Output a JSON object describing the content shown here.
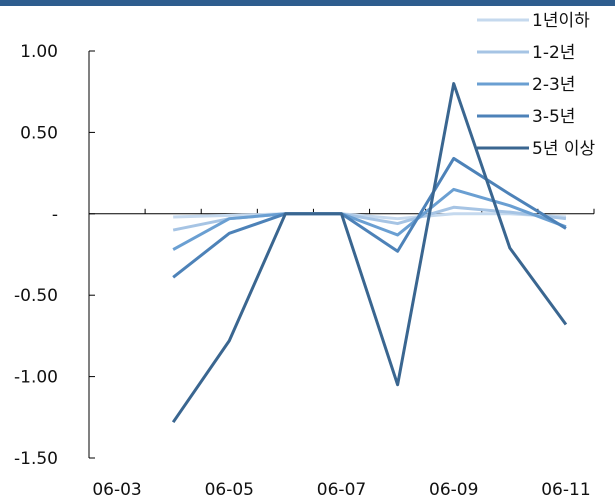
{
  "chart_data": {
    "type": "line",
    "title": "",
    "xlabel": "",
    "ylabel": "",
    "categories": [
      "06-03",
      "06-04",
      "06-05",
      "06-06",
      "06-07",
      "06-08",
      "06-09",
      "06-10",
      "06-11"
    ],
    "x_tick_labels": [
      "06-03",
      "06-05",
      "06-07",
      "06-09",
      "06-11"
    ],
    "y_tick_values": [
      1.0,
      0.5,
      0,
      -0.5,
      -1.0,
      -1.5
    ],
    "y_tick_labels": [
      "1.00",
      "0.50",
      "-",
      "-0.50",
      "-1.00",
      "-1.50"
    ],
    "ylim": [
      -1.5,
      1.0
    ],
    "grid": false,
    "legend_position": "top-right",
    "series": [
      {
        "name": "1년이하",
        "color": "#c5d9ee",
        "values": [
          null,
          -0.02,
          -0.01,
          0.0,
          0.0,
          -0.03,
          0.0,
          0.0,
          -0.02
        ]
      },
      {
        "name": "1-2년",
        "color": "#a6c4e4",
        "values": [
          null,
          -0.1,
          -0.03,
          0.0,
          0.0,
          -0.06,
          0.04,
          0.01,
          -0.03
        ]
      },
      {
        "name": "2-3년",
        "color": "#6a9fd2",
        "values": [
          null,
          -0.22,
          -0.03,
          0.0,
          0.0,
          -0.13,
          0.15,
          0.05,
          -0.08
        ]
      },
      {
        "name": "3-5년",
        "color": "#4d82b8",
        "values": [
          null,
          -0.39,
          -0.12,
          0.0,
          0.0,
          -0.23,
          0.34,
          0.12,
          -0.09
        ]
      },
      {
        "name": "5년 이상",
        "color": "#3a6690",
        "values": [
          null,
          -1.28,
          -0.78,
          0.0,
          0.0,
          -1.05,
          0.8,
          -0.21,
          -0.68
        ]
      }
    ]
  }
}
